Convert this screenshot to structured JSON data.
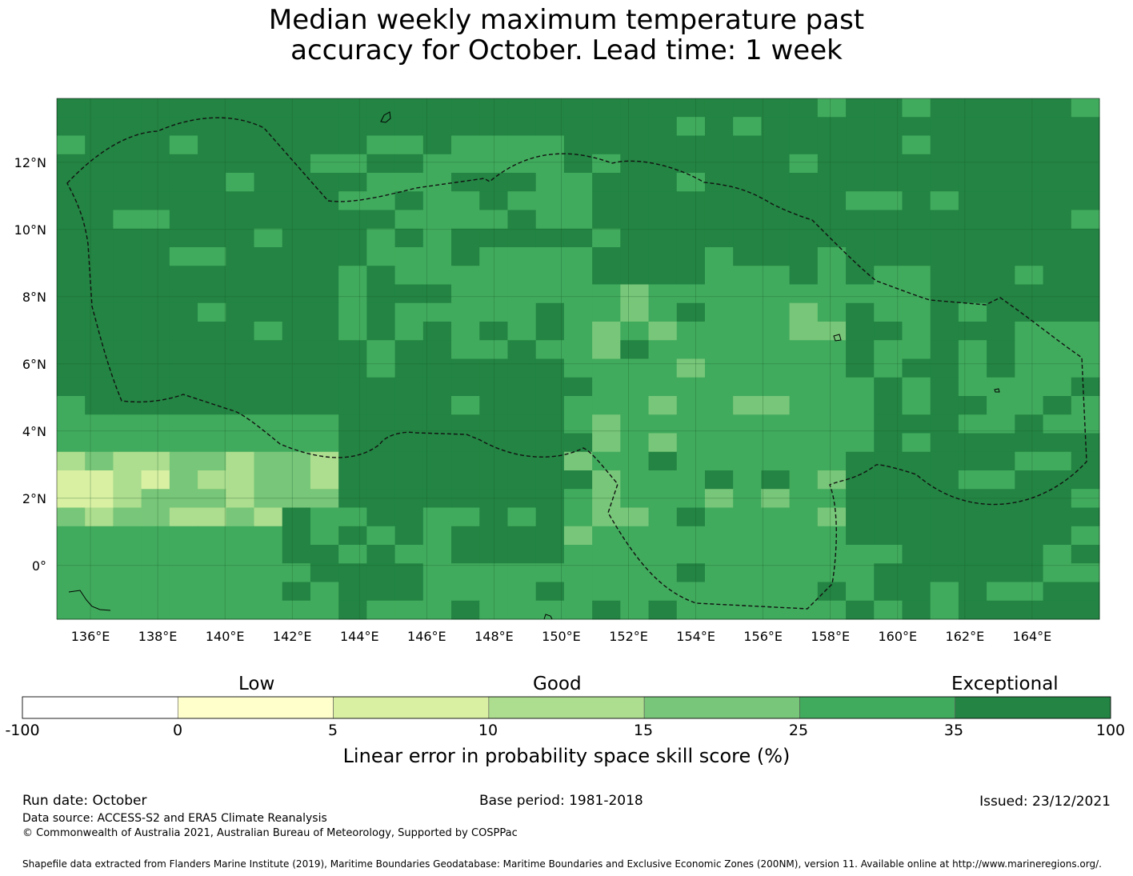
{
  "title": {
    "line1": "Median weekly maximum temperature past",
    "line2": "accuracy for October. Lead time: 1 week"
  },
  "map": {
    "lon_range": [
      135,
      166
    ],
    "lat_range": [
      -1.6,
      13.9
    ],
    "lon_ticks": [
      "136°E",
      "138°E",
      "140°E",
      "142°E",
      "144°E",
      "146°E",
      "148°E",
      "150°E",
      "152°E",
      "154°E",
      "156°E",
      "158°E",
      "160°E",
      "162°E",
      "164°E"
    ],
    "lat_ticks": [
      "12°N",
      "10°N",
      "8°N",
      "6°N",
      "4°N",
      "2°N",
      "0°"
    ],
    "boundary_style": "dashed",
    "grid": true
  },
  "colorbar": {
    "tiers": [
      "Low",
      "Good",
      "Exceptional"
    ],
    "ticks": [
      "-100",
      "0",
      "5",
      "10",
      "15",
      "25",
      "35",
      "100"
    ],
    "colors": [
      "#ffffff",
      "#ffffcc",
      "#d9f0a3",
      "#addd8e",
      "#78c679",
      "#41ab5d",
      "#238443"
    ],
    "label": "Linear error in probability space skill score (%)"
  },
  "footer": {
    "run_date": "Run date: October",
    "base_period": "Base period: 1981-2018",
    "issued": "Issued: 23/12/2021",
    "data_source": "Data source: ACCESS-S2 and ERA5 Climate Reanalysis",
    "copyright": "© Commonwealth of Australia 2021, Australian Bureau of Meteorology, Supported by COSPPac",
    "shapefile": "Shapefile data extracted from Flanders Marine Institute (2019), Maritime Boundaries Geodatabase: Maritime Boundaries and Exclusive Economic Zones (200NM), version 11. Available online at http://www.marineregions.org/."
  }
}
